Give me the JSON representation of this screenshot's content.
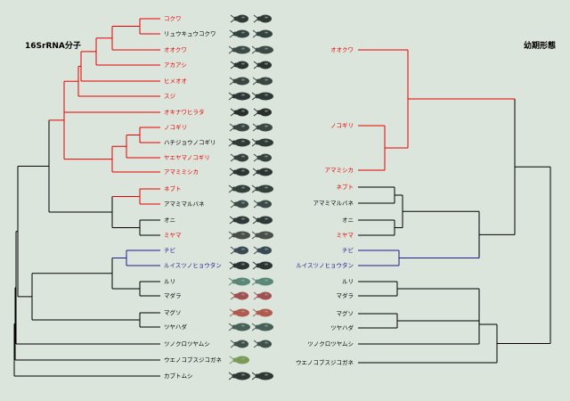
{
  "colors": {
    "background": "#dce5dc",
    "black": "#000000",
    "red": "#e60000",
    "blue": "#1c1c8c"
  },
  "titles": {
    "left": "16SrRNA分子",
    "right": "幼期形態"
  },
  "left_labels": [
    {
      "text": "コクワ",
      "color": "red"
    },
    {
      "text": "リュウキュウコクワ",
      "color": "black"
    },
    {
      "text": "オオクワ",
      "color": "red"
    },
    {
      "text": "アカアシ",
      "color": "red"
    },
    {
      "text": "ヒメオオ",
      "color": "red"
    },
    {
      "text": "スジ",
      "color": "red"
    },
    {
      "text": "オキナワヒラタ",
      "color": "red"
    },
    {
      "text": "ノコギリ",
      "color": "red"
    },
    {
      "text": "ハチジョウノコギリ",
      "color": "black"
    },
    {
      "text": "ヤエヤマノコギリ",
      "color": "red"
    },
    {
      "text": "アマミミシカ",
      "color": "red"
    },
    {
      "text": "ネブト",
      "color": "red"
    },
    {
      "text": "アマミマルバネ",
      "color": "black"
    },
    {
      "text": "オニ",
      "color": "black"
    },
    {
      "text": "ミヤマ",
      "color": "red"
    },
    {
      "text": "チビ",
      "color": "blue"
    },
    {
      "text": "ルイスツノヒョウタン",
      "color": "blue"
    },
    {
      "text": "ルリ",
      "color": "black"
    },
    {
      "text": "マダラ",
      "color": "black"
    },
    {
      "text": "マグソ",
      "color": "black"
    },
    {
      "text": "ツヤハダ",
      "color": "black"
    },
    {
      "text": "ツノクロツヤムシ",
      "color": "black"
    },
    {
      "text": "ウエノコブスジコガネ",
      "color": "black"
    },
    {
      "text": "カブトムシ",
      "color": "black"
    }
  ],
  "right_labels": [
    {
      "text": "オオクワ",
      "color": "red"
    },
    {
      "text": "ノコギリ",
      "color": "red"
    },
    {
      "text": "アマミシカ",
      "color": "red"
    },
    {
      "text": "ネブト",
      "color": "red"
    },
    {
      "text": "アマミマルバネ",
      "color": "black"
    },
    {
      "text": "オニ",
      "color": "black"
    },
    {
      "text": "ミヤマ",
      "color": "red"
    },
    {
      "text": "チビ",
      "color": "blue"
    },
    {
      "text": "ルイスツノヒョウタン",
      "color": "blue"
    },
    {
      "text": "ルリ",
      "color": "black"
    },
    {
      "text": "マダラ",
      "color": "black"
    },
    {
      "text": "マグソ",
      "color": "black"
    },
    {
      "text": "ツヤハダ",
      "color": "black"
    },
    {
      "text": "ツノクロツヤムシ",
      "color": "black"
    },
    {
      "text": "ウエノコブスジコガネ",
      "color": "black"
    }
  ]
}
